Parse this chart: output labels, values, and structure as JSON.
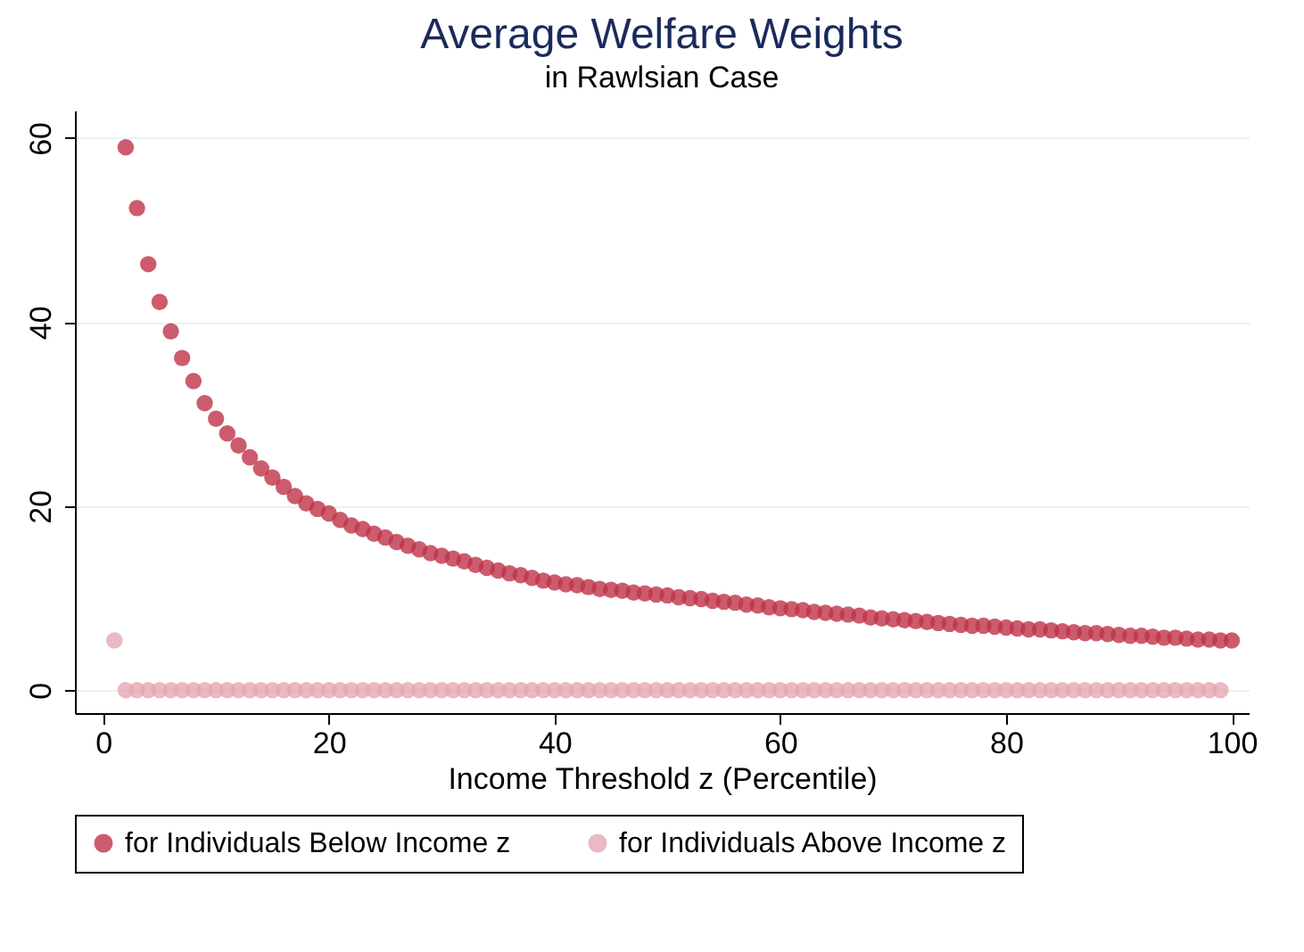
{
  "chart_data": {
    "type": "scatter",
    "title": "Average Welfare Weights",
    "subtitle": "in Rawlsian Case",
    "xlabel": "Income Threshold z (Percentile)",
    "x": [
      1,
      2,
      3,
      4,
      5,
      6,
      7,
      8,
      9,
      10,
      11,
      12,
      13,
      14,
      15,
      16,
      17,
      18,
      19,
      20,
      21,
      22,
      23,
      24,
      25,
      26,
      27,
      28,
      29,
      30,
      31,
      32,
      33,
      34,
      35,
      36,
      37,
      38,
      39,
      40,
      41,
      42,
      43,
      44,
      45,
      46,
      47,
      48,
      49,
      50,
      51,
      52,
      53,
      54,
      55,
      56,
      57,
      58,
      59,
      60,
      61,
      62,
      63,
      64,
      65,
      66,
      67,
      68,
      69,
      70,
      71,
      72,
      73,
      74,
      75,
      76,
      77,
      78,
      79,
      80,
      81,
      82,
      83,
      84,
      85,
      86,
      87,
      88,
      89,
      90,
      91,
      92,
      93,
      94,
      95,
      96,
      97,
      98,
      99,
      100
    ],
    "series": [
      {
        "name": "for Individuals Below Income z",
        "color": "#bf3349",
        "values": [
          null,
          59.0,
          52.4,
          46.3,
          42.2,
          39.0,
          36.1,
          33.6,
          31.2,
          29.5,
          27.9,
          26.6,
          25.3,
          24.1,
          23.1,
          22.1,
          21.1,
          20.3,
          19.7,
          19.2,
          18.5,
          17.9,
          17.5,
          17.0,
          16.6,
          16.1,
          15.7,
          15.3,
          14.9,
          14.6,
          14.3,
          14.0,
          13.6,
          13.3,
          13.0,
          12.7,
          12.5,
          12.2,
          11.9,
          11.7,
          11.5,
          11.4,
          11.2,
          11.0,
          10.9,
          10.8,
          10.6,
          10.5,
          10.4,
          10.3,
          10.1,
          10.0,
          9.9,
          9.7,
          9.6,
          9.5,
          9.3,
          9.2,
          9.0,
          8.9,
          8.8,
          8.7,
          8.5,
          8.4,
          8.3,
          8.2,
          8.1,
          7.9,
          7.8,
          7.7,
          7.6,
          7.5,
          7.4,
          7.3,
          7.2,
          7.1,
          7.0,
          7.0,
          6.9,
          6.8,
          6.7,
          6.6,
          6.6,
          6.5,
          6.4,
          6.3,
          6.2,
          6.2,
          6.1,
          6.0,
          5.9,
          5.9,
          5.8,
          5.7,
          5.7,
          5.6,
          5.5,
          5.5,
          5.4,
          5.4
        ]
      },
      {
        "name": "for Individuals Above Income z",
        "color": "#e5a8b1",
        "values": [
          5.4,
          0,
          0,
          0,
          0,
          0,
          0,
          0,
          0,
          0,
          0,
          0,
          0,
          0,
          0,
          0,
          0,
          0,
          0,
          0,
          0,
          0,
          0,
          0,
          0,
          0,
          0,
          0,
          0,
          0,
          0,
          0,
          0,
          0,
          0,
          0,
          0,
          0,
          0,
          0,
          0,
          0,
          0,
          0,
          0,
          0,
          0,
          0,
          0,
          0,
          0,
          0,
          0,
          0,
          0,
          0,
          0,
          0,
          0,
          0,
          0,
          0,
          0,
          0,
          0,
          0,
          0,
          0,
          0,
          0,
          0,
          0,
          0,
          0,
          0,
          0,
          0,
          0,
          0,
          0,
          0,
          0,
          0,
          0,
          0,
          0,
          0,
          0,
          0,
          0,
          0,
          0,
          0,
          0,
          0,
          0,
          0,
          0,
          0,
          null
        ]
      }
    ],
    "xlim": [
      -2.5,
      101.5
    ],
    "xticks": [
      0,
      20,
      40,
      60,
      80,
      100
    ],
    "ylim": [
      -2.5,
      63
    ],
    "yticks": [
      0,
      20,
      40,
      60
    ],
    "grid": "y",
    "legend": "bottom",
    "marker": "circle"
  }
}
